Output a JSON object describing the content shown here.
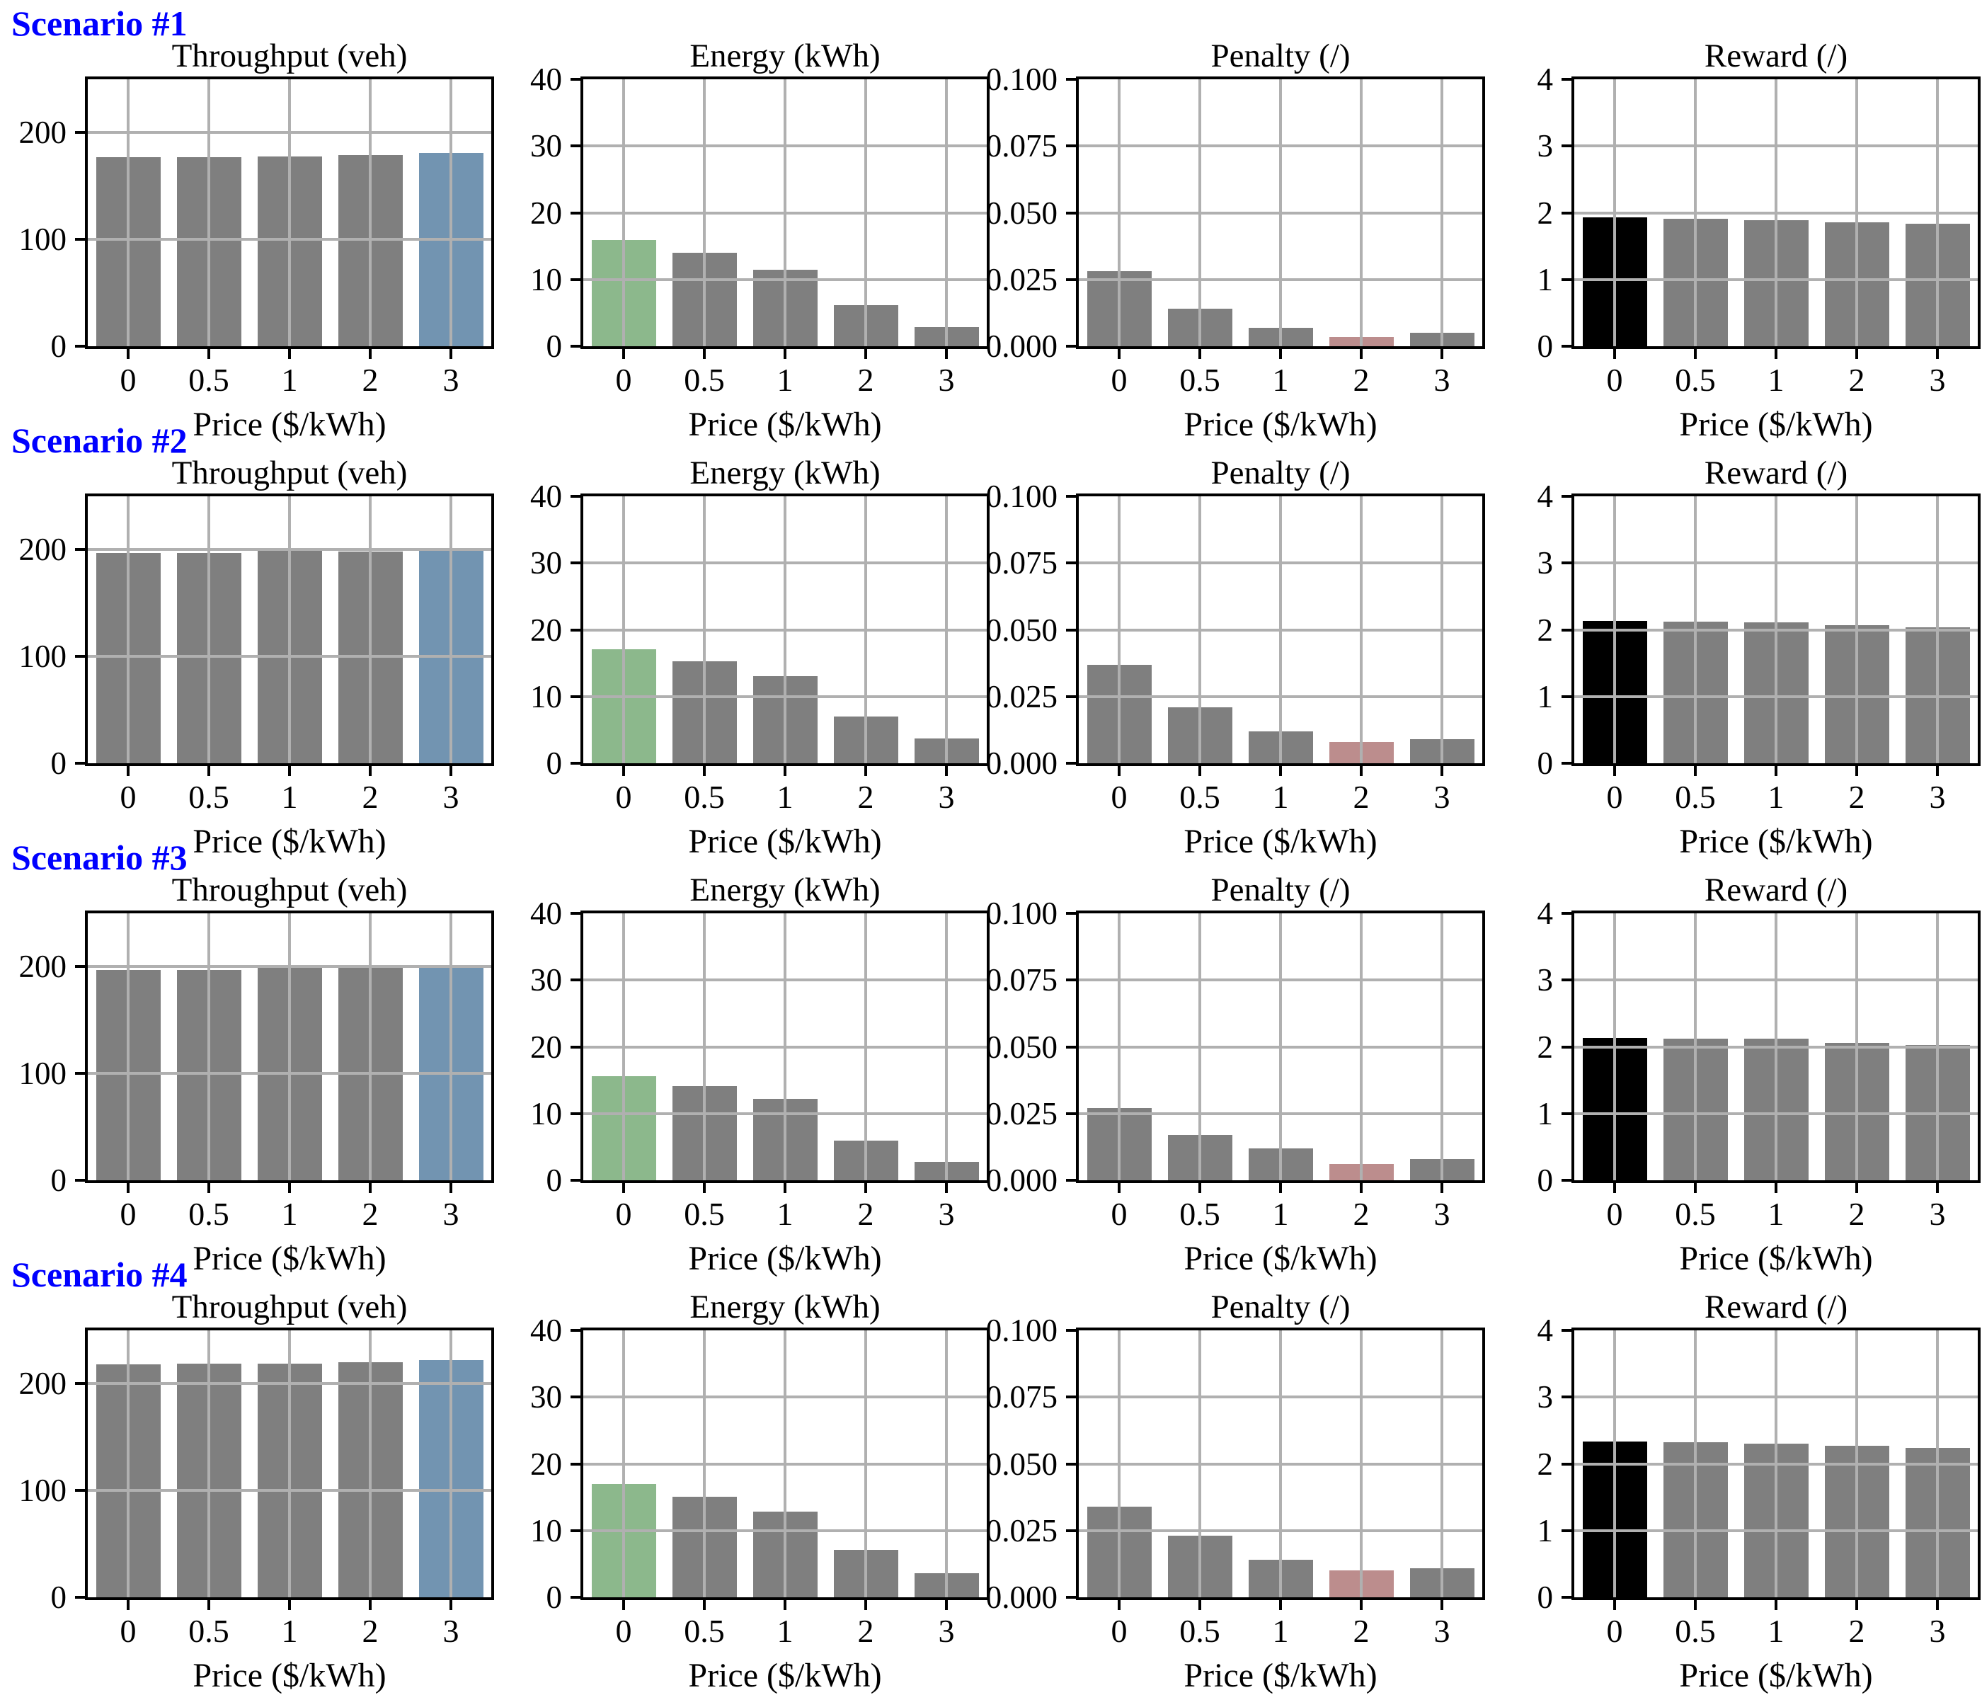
{
  "xlabel": "Price ($/kWh)",
  "x_tick_labels": [
    "0",
    "0.5",
    "1",
    "2",
    "3"
  ],
  "colors": {
    "gray": "#7f7f7f",
    "blue": "#7294B1",
    "green": "#8CB88C",
    "pink": "#BC8D8D",
    "black": "#000000",
    "scenario_label": "#0000FF",
    "grid": "#b0b0b0",
    "spine": "#000000"
  },
  "chart_data": [
    {
      "scenario": "Scenario #1",
      "charts": [
        {
          "type": "bar",
          "title": "Throughput (veh)",
          "xlabel": "Price ($/kWh)",
          "categories": [
            "0",
            "0.5",
            "1",
            "2",
            "3"
          ],
          "values": [
            177,
            177,
            178,
            179,
            181
          ],
          "ylim": [
            0,
            250
          ],
          "yticks": [
            0,
            100,
            200
          ],
          "ytick_labels": [
            "0",
            "100",
            "200"
          ],
          "colors": [
            "gray",
            "gray",
            "gray",
            "gray",
            "blue"
          ],
          "grid": true
        },
        {
          "type": "bar",
          "title": "Energy (kWh)",
          "xlabel": "Price ($/kWh)",
          "categories": [
            "0",
            "0.5",
            "1",
            "2",
            "3"
          ],
          "values": [
            15.9,
            14.0,
            11.5,
            6.2,
            2.9
          ],
          "ylim": [
            0,
            40
          ],
          "yticks": [
            0,
            10,
            20,
            30,
            40
          ],
          "ytick_labels": [
            "0",
            "10",
            "20",
            "30",
            "40"
          ],
          "colors": [
            "green",
            "gray",
            "gray",
            "gray",
            "gray"
          ],
          "grid": true
        },
        {
          "type": "bar",
          "title": "Penalty (/)",
          "xlabel": "Price ($/kWh)",
          "categories": [
            "0",
            "0.5",
            "1",
            "2",
            "3"
          ],
          "values": [
            0.028,
            0.014,
            0.007,
            0.0035,
            0.005
          ],
          "ylim": [
            0,
            0.1
          ],
          "yticks": [
            0,
            0.025,
            0.05,
            0.075,
            0.1
          ],
          "ytick_labels": [
            "0.000",
            "0.025",
            "0.050",
            "0.075",
            "0.100"
          ],
          "colors": [
            "gray",
            "gray",
            "gray",
            "pink",
            "gray"
          ],
          "grid": true
        },
        {
          "type": "bar",
          "title": "Reward (/)",
          "xlabel": "Price ($/kWh)",
          "categories": [
            "0",
            "0.5",
            "1",
            "2",
            "3"
          ],
          "values": [
            1.93,
            1.91,
            1.89,
            1.86,
            1.84
          ],
          "ylim": [
            0,
            4
          ],
          "yticks": [
            0,
            1,
            2,
            3,
            4
          ],
          "ytick_labels": [
            "0",
            "1",
            "2",
            "3",
            "4"
          ],
          "colors": [
            "black",
            "gray",
            "gray",
            "gray",
            "gray"
          ],
          "grid": true
        }
      ]
    },
    {
      "scenario": "Scenario #2",
      "charts": [
        {
          "type": "bar",
          "title": "Throughput (veh)",
          "xlabel": "Price ($/kWh)",
          "categories": [
            "0",
            "0.5",
            "1",
            "2",
            "3"
          ],
          "values": [
            197,
            197,
            199,
            198,
            199
          ],
          "ylim": [
            0,
            250
          ],
          "yticks": [
            0,
            100,
            200
          ],
          "ytick_labels": [
            "0",
            "100",
            "200"
          ],
          "colors": [
            "gray",
            "gray",
            "gray",
            "gray",
            "blue"
          ],
          "grid": true
        },
        {
          "type": "bar",
          "title": "Energy (kWh)",
          "xlabel": "Price ($/kWh)",
          "categories": [
            "0",
            "0.5",
            "1",
            "2",
            "3"
          ],
          "values": [
            17.1,
            15.3,
            13.0,
            7.0,
            3.7
          ],
          "ylim": [
            0,
            40
          ],
          "yticks": [
            0,
            10,
            20,
            30,
            40
          ],
          "ytick_labels": [
            "0",
            "10",
            "20",
            "30",
            "40"
          ],
          "colors": [
            "green",
            "gray",
            "gray",
            "gray",
            "gray"
          ],
          "grid": true
        },
        {
          "type": "bar",
          "title": "Penalty (/)",
          "xlabel": "Price ($/kWh)",
          "categories": [
            "0",
            "0.5",
            "1",
            "2",
            "3"
          ],
          "values": [
            0.037,
            0.021,
            0.012,
            0.008,
            0.009
          ],
          "ylim": [
            0,
            0.1
          ],
          "yticks": [
            0,
            0.025,
            0.05,
            0.075,
            0.1
          ],
          "ytick_labels": [
            "0.000",
            "0.025",
            "0.050",
            "0.075",
            "0.100"
          ],
          "colors": [
            "gray",
            "gray",
            "gray",
            "pink",
            "gray"
          ],
          "grid": true
        },
        {
          "type": "bar",
          "title": "Reward (/)",
          "xlabel": "Price ($/kWh)",
          "categories": [
            "0",
            "0.5",
            "1",
            "2",
            "3"
          ],
          "values": [
            2.13,
            2.12,
            2.11,
            2.07,
            2.04
          ],
          "ylim": [
            0,
            4
          ],
          "yticks": [
            0,
            1,
            2,
            3,
            4
          ],
          "ytick_labels": [
            "0",
            "1",
            "2",
            "3",
            "4"
          ],
          "colors": [
            "black",
            "gray",
            "gray",
            "gray",
            "gray"
          ],
          "grid": true
        }
      ]
    },
    {
      "scenario": "Scenario #3",
      "charts": [
        {
          "type": "bar",
          "title": "Throughput (veh)",
          "xlabel": "Price ($/kWh)",
          "categories": [
            "0",
            "0.5",
            "1",
            "2",
            "3"
          ],
          "values": [
            197,
            197,
            199,
            199,
            199
          ],
          "ylim": [
            0,
            250
          ],
          "yticks": [
            0,
            100,
            200
          ],
          "ytick_labels": [
            "0",
            "100",
            "200"
          ],
          "colors": [
            "gray",
            "gray",
            "gray",
            "gray",
            "blue"
          ],
          "grid": true
        },
        {
          "type": "bar",
          "title": "Energy (kWh)",
          "xlabel": "Price ($/kWh)",
          "categories": [
            "0",
            "0.5",
            "1",
            "2",
            "3"
          ],
          "values": [
            15.6,
            14.1,
            12.2,
            5.9,
            2.8
          ],
          "ylim": [
            0,
            40
          ],
          "yticks": [
            0,
            10,
            20,
            30,
            40
          ],
          "ytick_labels": [
            "0",
            "10",
            "20",
            "30",
            "40"
          ],
          "colors": [
            "green",
            "gray",
            "gray",
            "gray",
            "gray"
          ],
          "grid": true
        },
        {
          "type": "bar",
          "title": "Penalty (/)",
          "xlabel": "Price ($/kWh)",
          "categories": [
            "0",
            "0.5",
            "1",
            "2",
            "3"
          ],
          "values": [
            0.027,
            0.017,
            0.012,
            0.006,
            0.008
          ],
          "ylim": [
            0,
            0.1
          ],
          "yticks": [
            0,
            0.025,
            0.05,
            0.075,
            0.1
          ],
          "ytick_labels": [
            "0.000",
            "0.025",
            "0.050",
            "0.075",
            "0.100"
          ],
          "colors": [
            "gray",
            "gray",
            "gray",
            "pink",
            "gray"
          ],
          "grid": true
        },
        {
          "type": "bar",
          "title": "Reward (/)",
          "xlabel": "Price ($/kWh)",
          "categories": [
            "0",
            "0.5",
            "1",
            "2",
            "3"
          ],
          "values": [
            2.13,
            2.12,
            2.12,
            2.06,
            2.03
          ],
          "ylim": [
            0,
            4
          ],
          "yticks": [
            0,
            1,
            2,
            3,
            4
          ],
          "ytick_labels": [
            "0",
            "1",
            "2",
            "3",
            "4"
          ],
          "colors": [
            "black",
            "gray",
            "gray",
            "gray",
            "gray"
          ],
          "grid": true
        }
      ]
    },
    {
      "scenario": "Scenario #4",
      "charts": [
        {
          "type": "bar",
          "title": "Throughput (veh)",
          "xlabel": "Price ($/kWh)",
          "categories": [
            "0",
            "0.5",
            "1",
            "2",
            "3"
          ],
          "values": [
            218,
            219,
            219,
            220,
            222
          ],
          "ylim": [
            0,
            250
          ],
          "yticks": [
            0,
            100,
            200
          ],
          "ytick_labels": [
            "0",
            "100",
            "200"
          ],
          "colors": [
            "gray",
            "gray",
            "gray",
            "gray",
            "blue"
          ],
          "grid": true
        },
        {
          "type": "bar",
          "title": "Energy (kWh)",
          "xlabel": "Price ($/kWh)",
          "categories": [
            "0",
            "0.5",
            "1",
            "2",
            "3"
          ],
          "values": [
            17.0,
            15.1,
            12.8,
            7.1,
            3.6
          ],
          "ylim": [
            0,
            40
          ],
          "yticks": [
            0,
            10,
            20,
            30,
            40
          ],
          "ytick_labels": [
            "0",
            "10",
            "20",
            "30",
            "40"
          ],
          "colors": [
            "green",
            "gray",
            "gray",
            "gray",
            "gray"
          ],
          "grid": true
        },
        {
          "type": "bar",
          "title": "Penalty (/)",
          "xlabel": "Price ($/kWh)",
          "categories": [
            "0",
            "0.5",
            "1",
            "2",
            "3"
          ],
          "values": [
            0.034,
            0.023,
            0.014,
            0.01,
            0.011
          ],
          "ylim": [
            0,
            0.1
          ],
          "yticks": [
            0,
            0.025,
            0.05,
            0.075,
            0.1
          ],
          "ytick_labels": [
            "0.000",
            "0.025",
            "0.050",
            "0.075",
            "0.100"
          ],
          "colors": [
            "gray",
            "gray",
            "gray",
            "pink",
            "gray"
          ],
          "grid": true
        },
        {
          "type": "bar",
          "title": "Reward (/)",
          "xlabel": "Price ($/kWh)",
          "categories": [
            "0",
            "0.5",
            "1",
            "2",
            "3"
          ],
          "values": [
            2.33,
            2.32,
            2.3,
            2.27,
            2.24
          ],
          "ylim": [
            0,
            4
          ],
          "yticks": [
            0,
            1,
            2,
            3,
            4
          ],
          "ytick_labels": [
            "0",
            "1",
            "2",
            "3",
            "4"
          ],
          "colors": [
            "black",
            "gray",
            "gray",
            "gray",
            "gray"
          ],
          "grid": true
        }
      ]
    }
  ]
}
